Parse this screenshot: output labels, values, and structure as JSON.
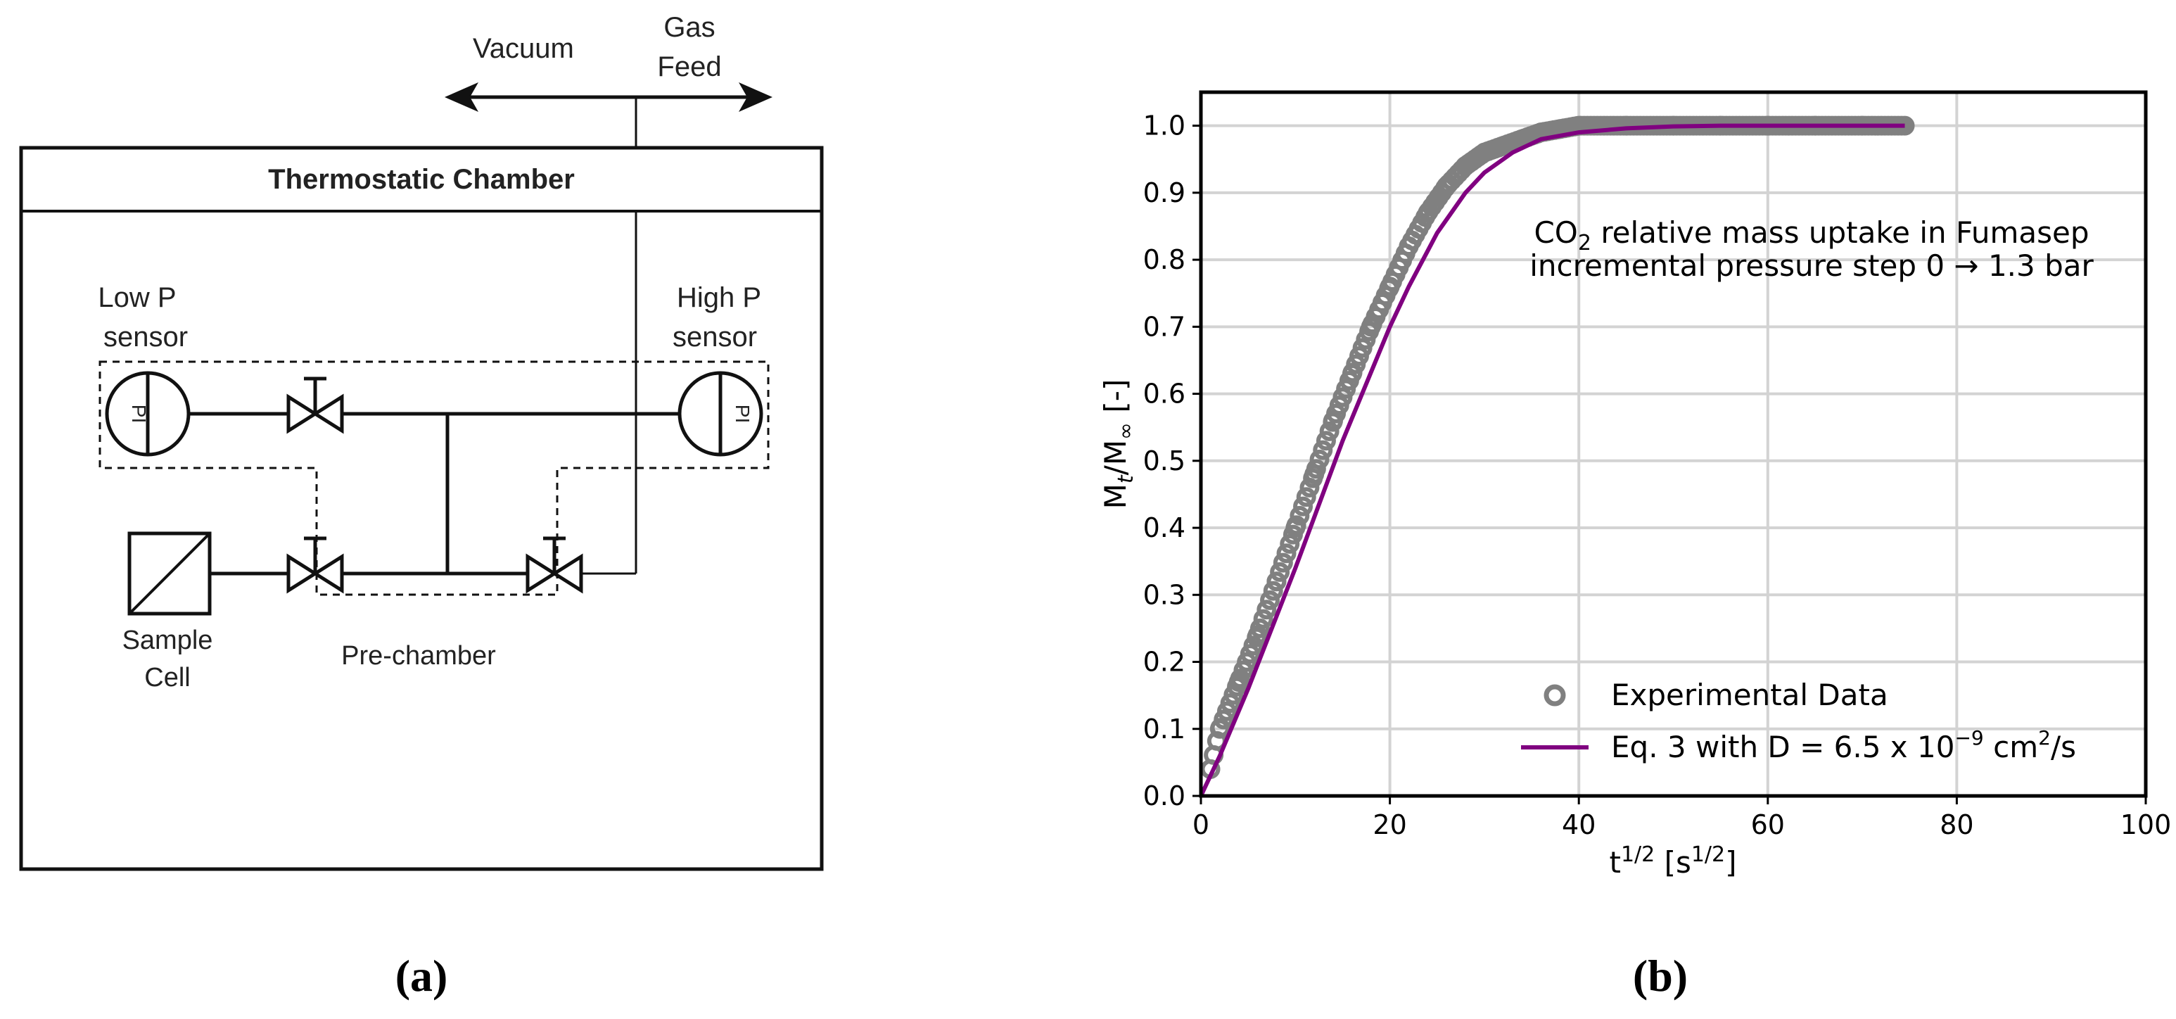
{
  "diagram": {
    "vacuum_label": "Vacuum",
    "gas_feed_label": [
      "Gas",
      "Feed"
    ],
    "chamber_title": "Thermostatic Chamber",
    "low_p_label": [
      "Low P",
      "sensor"
    ],
    "high_p_label": [
      "High P",
      "sensor"
    ],
    "pi_symbol": "PI",
    "sample_cell_label": [
      "Sample",
      "Cell"
    ],
    "prechamber_label": "Pre-chamber",
    "caption": "(a)"
  },
  "plot": {
    "caption": "(b)",
    "annotation_line1_prefix": "CO",
    "annotation_line1_sub": "2",
    "annotation_line1_suffix": " relative mass uptake in Fumasep",
    "annotation_line2": "incremental pressure step 0 → 1.3 bar"
  },
  "chart_data": {
    "type": "scatter",
    "xlabel": "t^1/2 [s^1/2]",
    "ylabel": "Mt/M∞ [-]",
    "xlim": [
      0,
      100
    ],
    "ylim": [
      0,
      1.05
    ],
    "x_ticks": [
      0,
      20,
      40,
      60,
      80,
      100
    ],
    "y_ticks": [
      0.0,
      0.1,
      0.2,
      0.3,
      0.4,
      0.5,
      0.6,
      0.7,
      0.8,
      0.9,
      1.0
    ],
    "grid": true,
    "legend": "lower-right",
    "series": [
      {
        "name": "Experimental Data",
        "kind": "scatter",
        "color": "#808080",
        "x": [
          1,
          2,
          4,
          6,
          8,
          10,
          12,
          14,
          16,
          18,
          20,
          22,
          24,
          26,
          28,
          30,
          32,
          34,
          36,
          38,
          40,
          45,
          50,
          55,
          60,
          65,
          70,
          74.5
        ],
        "y": [
          0.04,
          0.1,
          0.17,
          0.24,
          0.32,
          0.4,
          0.48,
          0.56,
          0.63,
          0.7,
          0.76,
          0.82,
          0.87,
          0.91,
          0.94,
          0.96,
          0.97,
          0.98,
          0.99,
          0.995,
          1.0,
          1.0,
          1.0,
          1.0,
          1.0,
          1.0,
          1.0,
          1.0
        ]
      },
      {
        "name": "Eq. 3 with D = 6.5 x 10⁻⁹ cm²/s",
        "kind": "line",
        "color": "#800080",
        "x": [
          0,
          2,
          5,
          10,
          15,
          20,
          22,
          25,
          28,
          30,
          33,
          36,
          40,
          45,
          50,
          55,
          60,
          65,
          70,
          74.5
        ],
        "y": [
          0.0,
          0.06,
          0.16,
          0.34,
          0.53,
          0.7,
          0.76,
          0.84,
          0.9,
          0.93,
          0.96,
          0.98,
          0.99,
          0.996,
          0.999,
          1.0,
          1.0,
          1.0,
          1.0,
          1.0
        ]
      }
    ]
  }
}
